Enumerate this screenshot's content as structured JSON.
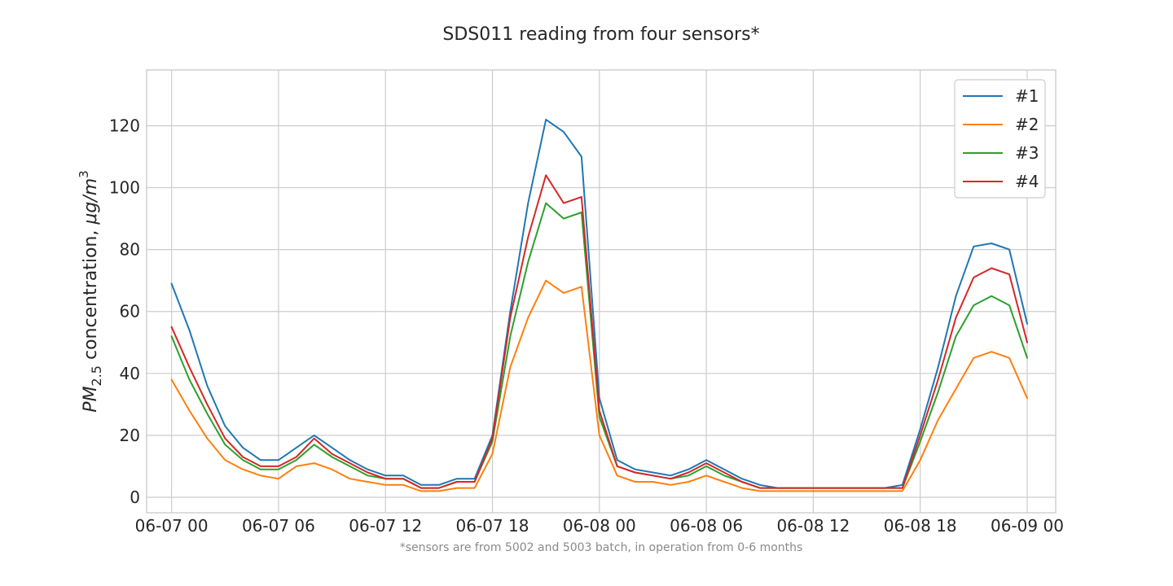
{
  "chart_data": {
    "type": "line",
    "title": "SDS011 reading from four sensors*",
    "footnote": "*sensors are from 5002 and 5003 batch, in operation from 0-6 months",
    "ylabel": {
      "main": "PM",
      "sub": "2.5",
      "rest": " concentration, ",
      "unit": "μg/m",
      "sup": "3"
    },
    "xlabel": "",
    "x_ticks": [
      "06-07 00",
      "06-07 06",
      "06-07 12",
      "06-07 18",
      "06-08 00",
      "06-08 06",
      "06-08 12",
      "06-08 18",
      "06-09 00"
    ],
    "xlim": [
      "06-06 22:36",
      "06-09 01:36"
    ],
    "y_ticks": [
      0,
      20,
      40,
      60,
      80,
      100,
      120
    ],
    "ylim": [
      -5,
      138
    ],
    "grid": true,
    "legend_position": "top-right",
    "x": [
      "06-07 00:00",
      "06-07 01:00",
      "06-07 02:00",
      "06-07 03:00",
      "06-07 04:00",
      "06-07 05:00",
      "06-07 06:00",
      "06-07 07:00",
      "06-07 08:00",
      "06-07 09:00",
      "06-07 10:00",
      "06-07 11:00",
      "06-07 12:00",
      "06-07 13:00",
      "06-07 14:00",
      "06-07 15:00",
      "06-07 16:00",
      "06-07 17:00",
      "06-07 18:00",
      "06-07 19:00",
      "06-07 20:00",
      "06-07 21:00",
      "06-07 22:00",
      "06-07 23:00",
      "06-08 00:00",
      "06-08 01:00",
      "06-08 02:00",
      "06-08 03:00",
      "06-08 04:00",
      "06-08 05:00",
      "06-08 06:00",
      "06-08 07:00",
      "06-08 08:00",
      "06-08 09:00",
      "06-08 10:00",
      "06-08 11:00",
      "06-08 12:00",
      "06-08 13:00",
      "06-08 14:00",
      "06-08 15:00",
      "06-08 16:00",
      "06-08 17:00",
      "06-08 18:00",
      "06-08 19:00",
      "06-08 20:00",
      "06-08 21:00",
      "06-08 22:00",
      "06-08 23:00",
      "06-09 00:00"
    ],
    "series": [
      {
        "name": "#1",
        "color": "#1f77b4",
        "values": [
          69,
          54,
          36,
          23,
          16,
          12,
          12,
          16,
          20,
          16,
          12,
          9,
          7,
          7,
          4,
          4,
          6,
          6,
          20,
          60,
          95,
          122,
          118,
          110,
          32,
          12,
          9,
          8,
          7,
          9,
          12,
          9,
          6,
          4,
          3,
          3,
          3,
          3,
          3,
          3,
          3,
          4,
          22,
          42,
          65,
          81,
          82,
          80,
          56
        ]
      },
      {
        "name": "#2",
        "color": "#ff7f0e",
        "values": [
          38,
          28,
          19,
          12,
          9,
          7,
          6,
          10,
          11,
          9,
          6,
          5,
          4,
          4,
          2,
          2,
          3,
          3,
          14,
          42,
          58,
          70,
          66,
          68,
          20,
          7,
          5,
          5,
          4,
          5,
          7,
          5,
          3,
          2,
          2,
          2,
          2,
          2,
          2,
          2,
          2,
          2,
          12,
          25,
          35,
          45,
          47,
          45,
          32
        ]
      },
      {
        "name": "#3",
        "color": "#2ca02c",
        "values": [
          52,
          38,
          27,
          17,
          12,
          9,
          9,
          12,
          17,
          13,
          10,
          7,
          6,
          6,
          3,
          3,
          5,
          5,
          18,
          52,
          76,
          95,
          90,
          92,
          26,
          10,
          8,
          7,
          6,
          7,
          10,
          7,
          5,
          3,
          3,
          3,
          3,
          3,
          3,
          3,
          3,
          3,
          18,
          34,
          52,
          62,
          65,
          62,
          45
        ]
      },
      {
        "name": "#4",
        "color": "#d62728",
        "values": [
          55,
          42,
          30,
          19,
          13,
          10,
          10,
          13,
          19,
          14,
          11,
          8,
          6,
          6,
          3,
          3,
          5,
          5,
          19,
          58,
          84,
          104,
          95,
          97,
          28,
          10,
          8,
          7,
          6,
          8,
          11,
          8,
          5,
          3,
          3,
          3,
          3,
          3,
          3,
          3,
          3,
          3,
          20,
          38,
          58,
          71,
          74,
          72,
          50
        ]
      }
    ]
  }
}
